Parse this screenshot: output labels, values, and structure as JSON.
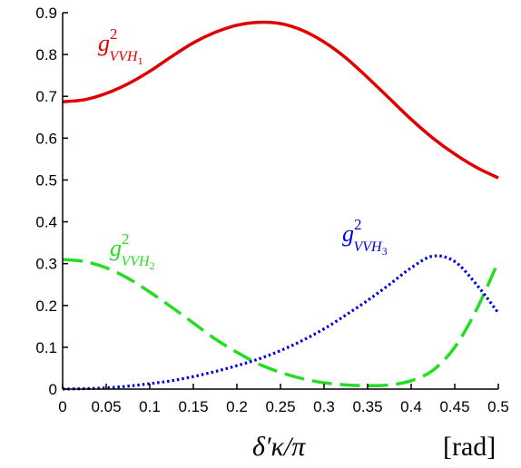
{
  "chart_data": {
    "type": "line",
    "x_range": [
      0,
      0.5
    ],
    "y_range": [
      0,
      0.9
    ],
    "xticks": [
      "0",
      "0.05",
      "0.1",
      "0.15",
      "0.2",
      "0.25",
      "0.3",
      "0.35",
      "0.4",
      "0.45",
      "0.5"
    ],
    "yticks": [
      "0",
      "0.1",
      "0.2",
      "0.3",
      "0.4",
      "0.5",
      "0.6",
      "0.7",
      "0.8",
      "0.9"
    ],
    "xlabel": {
      "main": "δ′κ/π",
      "unit": "[rad]"
    },
    "grid": false,
    "series": [
      {
        "label_base": "g",
        "label_sup": "2",
        "label_sub_main": "VVH",
        "label_sub_index": "1",
        "color": "#e00000",
        "dash": "solid",
        "x": [
          0,
          0.025,
          0.05,
          0.075,
          0.1,
          0.125,
          0.15,
          0.175,
          0.2,
          0.225,
          0.25,
          0.275,
          0.3,
          0.325,
          0.35,
          0.375,
          0.4,
          0.425,
          0.45,
          0.475,
          0.5
        ],
        "y": [
          0.687,
          0.692,
          0.707,
          0.73,
          0.76,
          0.795,
          0.828,
          0.853,
          0.87,
          0.877,
          0.874,
          0.858,
          0.83,
          0.792,
          0.745,
          0.695,
          0.645,
          0.6,
          0.562,
          0.53,
          0.505
        ]
      },
      {
        "label_base": "g",
        "label_sup": "2",
        "label_sub_main": "VVH",
        "label_sub_index": "2",
        "color": "#22dd22",
        "dash": "dashed",
        "x": [
          0,
          0.025,
          0.05,
          0.075,
          0.1,
          0.125,
          0.15,
          0.175,
          0.2,
          0.225,
          0.25,
          0.275,
          0.3,
          0.325,
          0.35,
          0.375,
          0.4,
          0.425,
          0.45,
          0.475,
          0.5
        ],
        "y": [
          0.31,
          0.305,
          0.29,
          0.265,
          0.232,
          0.196,
          0.158,
          0.12,
          0.088,
          0.06,
          0.04,
          0.025,
          0.015,
          0.01,
          0.008,
          0.01,
          0.02,
          0.045,
          0.1,
          0.19,
          0.305
        ]
      },
      {
        "label_base": "g",
        "label_sup": "2",
        "label_sub_main": "VVH",
        "label_sub_index": "3",
        "color": "#0000dd",
        "dash": "dotted",
        "x": [
          0,
          0.025,
          0.05,
          0.075,
          0.1,
          0.125,
          0.15,
          0.175,
          0.2,
          0.225,
          0.25,
          0.275,
          0.3,
          0.325,
          0.35,
          0.375,
          0.4,
          0.425,
          0.45,
          0.475,
          0.5
        ],
        "y": [
          0.0,
          0.001,
          0.003,
          0.007,
          0.013,
          0.02,
          0.03,
          0.042,
          0.056,
          0.072,
          0.092,
          0.116,
          0.144,
          0.177,
          0.212,
          0.25,
          0.29,
          0.318,
          0.305,
          0.25,
          0.182
        ]
      }
    ]
  }
}
